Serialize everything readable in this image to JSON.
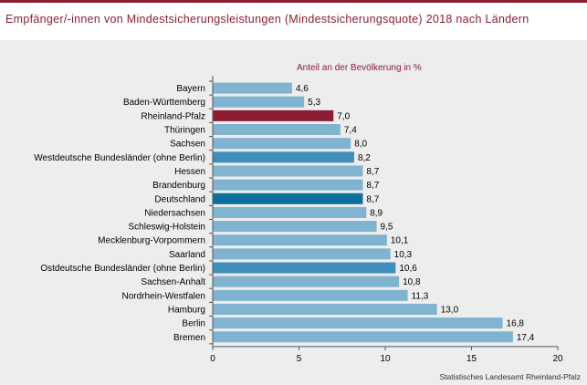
{
  "title": "Empfänger/-innen von Mindestsicherungsleistungen (Mindestsicherungsquote) 2018 nach Ländern",
  "source": "Statistisches Landesamt Rheinland-Pfalz",
  "colors": {
    "accent": "#8b1e34",
    "default_bar": "#7fb3d0",
    "west_east_bar": "#3f8fbc",
    "deutschland_bar": "#0e6f9a",
    "rheinland_pfalz_bar": "#8b1e34",
    "panel_background": "#ededed"
  },
  "chart_data": {
    "type": "bar",
    "orientation": "horizontal",
    "title": "Empfänger/-innen von Mindestsicherungsleistungen (Mindestsicherungsquote) 2018 nach Ländern",
    "subtitle": "Anteil an der Bevölkerung  in %",
    "xlabel": "",
    "ylabel": "",
    "xlim": [
      0,
      20
    ],
    "xticks": [
      0,
      5,
      10,
      15,
      20
    ],
    "grid": false,
    "categories": [
      "Bayern",
      "Baden-Württemberg",
      "Rheinland-Pfalz",
      "Thüringen",
      "Sachsen",
      "Westdeutsche Bundesländer (ohne Berlin)",
      "Hessen",
      "Brandenburg",
      "Deutschland",
      "Niedersachsen",
      "Schleswig-Holstein",
      "Mecklenburg-Vorpommern",
      "Saarland",
      "Ostdeutsche Bundesländer (ohne Berlin)",
      "Sachsen-Anhalt",
      "Nordrhein-Westfalen",
      "Hamburg",
      "Berlin",
      "Bremen"
    ],
    "values": [
      4.6,
      5.3,
      7.0,
      7.4,
      8.0,
      8.2,
      8.7,
      8.7,
      8.7,
      8.9,
      9.5,
      10.1,
      10.3,
      10.6,
      10.8,
      11.3,
      13.0,
      16.8,
      17.4
    ],
    "value_labels": [
      "4,6",
      "5,3",
      "7,0",
      "7,4",
      "8,0",
      "8,2",
      "8,7",
      "8,7",
      "8,7",
      "8,9",
      "9,5",
      "10,1",
      "10,3",
      "10,6",
      "10,8",
      "11,3",
      "13,0",
      "16,8",
      "17,4"
    ],
    "highlights": {
      "Rheinland-Pfalz": "#8b1e34",
      "Deutschland": "#0e6f9a",
      "Westdeutsche Bundesländer (ohne Berlin)": "#3f8fbc",
      "Ostdeutsche Bundesländer (ohne Berlin)": "#3f8fbc"
    }
  }
}
